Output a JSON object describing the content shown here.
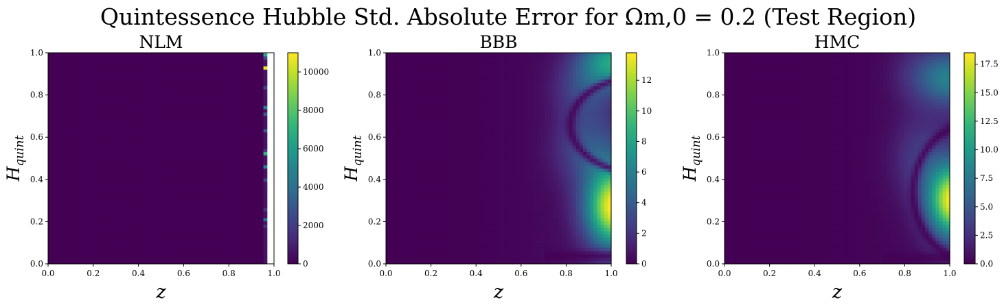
{
  "figure": {
    "suptitle": "Quintessence Hubble Std. Absolute Error for Ωm,0 = 0.2 (Test Region)"
  },
  "colors": {
    "viridis": [
      "#440154",
      "#482878",
      "#3e4989",
      "#31688e",
      "#26828e",
      "#1f9e89",
      "#35b779",
      "#6ece58",
      "#b5de2b",
      "#fde725"
    ],
    "axis": "#000000"
  },
  "chart_data": [
    {
      "type": "heatmap",
      "title": "NLM",
      "xlabel": "z",
      "ylabel": "H_quint",
      "xlim": [
        0.0,
        1.0
      ],
      "ylim": [
        0.0,
        1.0
      ],
      "xticks": [
        "0.0",
        "0.2",
        "0.4",
        "0.6",
        "0.8",
        "1.0"
      ],
      "yticks": [
        "0.0",
        "0.2",
        "0.4",
        "0.6",
        "0.8",
        "1.0"
      ],
      "colorbar": {
        "min": 0,
        "max": 11000,
        "ticks": [
          0,
          2000,
          4000,
          6000,
          8000,
          10000
        ],
        "tick_labels": [
          "0",
          "2000",
          "4000",
          "6000",
          "8000",
          "10000"
        ]
      },
      "pattern": "near-zero everywhere; sparse noisy spikes in the column z≈0.96-0.97 reaching ~11000 near H≈0.93; region z>0.97 empty",
      "grid": false
    },
    {
      "type": "heatmap",
      "title": "BBB",
      "xlabel": "z",
      "ylabel": "H_quint",
      "xlim": [
        0.0,
        1.0
      ],
      "ylim": [
        0.0,
        1.0
      ],
      "xticks": [
        "0.0",
        "0.2",
        "0.4",
        "0.6",
        "0.8",
        "1.0"
      ],
      "yticks": [
        "0.0",
        "0.2",
        "0.4",
        "0.6",
        "0.8",
        "1.0"
      ],
      "colorbar": {
        "min": 0,
        "max": 13.8,
        "ticks": [
          0,
          2,
          4,
          6,
          8,
          10,
          12
        ],
        "tick_labels": [
          "0",
          "2",
          "4",
          "6",
          "8",
          "10",
          "12"
        ]
      },
      "pattern": "smooth; error grows with z; peak ~13.5 at z=1.0, H≈0.27; secondary lobe ~7 at z=1.0, H≈0.95; dark minimum bands around H≈0.05 and H≈0.68 near z=1",
      "grid": false
    },
    {
      "type": "heatmap",
      "title": "HMC",
      "xlabel": "z",
      "ylabel": "H_quint",
      "xlim": [
        0.0,
        1.0
      ],
      "ylim": [
        0.0,
        1.0
      ],
      "xticks": [
        "0.0",
        "0.2",
        "0.4",
        "0.6",
        "0.8",
        "1.0"
      ],
      "yticks": [
        "0.0",
        "0.2",
        "0.4",
        "0.6",
        "0.8",
        "1.0"
      ],
      "colorbar": {
        "min": 0,
        "max": 18.5,
        "ticks": [
          0,
          2.5,
          5,
          7.5,
          10,
          12.5,
          15,
          17.5
        ],
        "tick_labels": [
          "0.0",
          "2.5",
          "5.0",
          "7.5",
          "10.0",
          "12.5",
          "15.0",
          "17.5"
        ]
      },
      "pattern": "smooth; peak ~18 at z=1.0, H≈0.3; secondary lobe ~7 at z=1.0, H≈0.88; dark minimum bands around H≈0.04 and H≈0.67 near z=1",
      "grid": false
    }
  ]
}
